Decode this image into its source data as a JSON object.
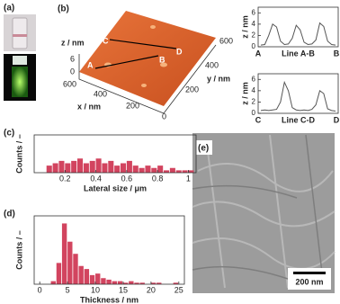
{
  "photos": {
    "label": "(a)"
  },
  "afm": {
    "label": "(b)",
    "z_label": "z / nm",
    "z_ticks": [
      6,
      0
    ],
    "x_label": "x / nm",
    "x_ticks": [
      600,
      400,
      200
    ],
    "y_label": "y / nm",
    "y_ticks": [
      600,
      400,
      200,
      0
    ],
    "points": [
      "A",
      "B",
      "C",
      "D"
    ]
  },
  "sem": {
    "label": "(e)",
    "scale_bar": "200 nm"
  },
  "chart_data": [
    {
      "type": "line",
      "xlabel": "Line A-B",
      "ylabel": "z / nm",
      "start_label": "A",
      "end_label": "B",
      "color": "#555555",
      "values": [
        0.3,
        0.4,
        2,
        4,
        3.5,
        1,
        0.4,
        0.5,
        1.5,
        3.8,
        3,
        0.8,
        0.4,
        0.5,
        1.2,
        4.2,
        3.6,
        1,
        0.4,
        0.3
      ],
      "ylim": [
        0,
        7
      ],
      "yticks": [
        0,
        2,
        4,
        6
      ]
    },
    {
      "type": "line",
      "xlabel": "Line C-D",
      "ylabel": "z / nm",
      "start_label": "C",
      "end_label": "D",
      "color": "#555555",
      "values": [
        0.5,
        0.6,
        0.5,
        0.6,
        0.7,
        2,
        5.5,
        4,
        1,
        0.6,
        0.5,
        0.6,
        0.5,
        0.7,
        1.5,
        4,
        3.5,
        0.8,
        0.5,
        0.4
      ],
      "ylim": [
        0,
        7
      ],
      "yticks": [
        0,
        2,
        4,
        6
      ]
    },
    {
      "type": "histogram",
      "panel": "(c)",
      "xlabel": "Lateral size / μm",
      "ylabel": "Counts / –",
      "color": "#d2445f",
      "bins": [
        0.08,
        0.12,
        0.16,
        0.2,
        0.24,
        0.28,
        0.32,
        0.36,
        0.4,
        0.44,
        0.48,
        0.52,
        0.56,
        0.6,
        0.64,
        0.68,
        0.72,
        0.76,
        0.8,
        0.84,
        0.88,
        0.92,
        0.96,
        1,
        1.04
      ],
      "values": [
        3,
        4,
        5,
        4,
        5,
        6,
        4,
        5,
        6,
        4,
        5,
        3,
        4,
        5,
        3,
        2,
        3,
        2,
        3,
        1,
        2,
        1,
        1,
        1
      ],
      "xlim": [
        0,
        1.05
      ],
      "xticks": [
        0.2,
        0.4,
        0.6,
        0.8,
        1
      ],
      "ylim": [
        0,
        16
      ]
    },
    {
      "type": "histogram",
      "panel": "(d)",
      "xlabel": "Thickness / nm",
      "ylabel": "Counts / –",
      "color": "#d2445f",
      "bins": [
        2,
        3,
        4,
        5,
        6,
        7,
        8,
        9,
        10,
        11,
        12,
        13,
        14,
        15,
        16,
        17,
        18,
        19,
        20,
        21,
        22,
        23,
        24,
        25
      ],
      "values": [
        2,
        14,
        40,
        28,
        20,
        12,
        10,
        6,
        7,
        4,
        3,
        2,
        2,
        1,
        2,
        1,
        1,
        0,
        1,
        1,
        0,
        0,
        1
      ],
      "xlim": [
        -1,
        26
      ],
      "xticks": [
        0,
        5,
        10,
        15,
        20,
        25
      ],
      "ylim": [
        0,
        45
      ]
    }
  ]
}
